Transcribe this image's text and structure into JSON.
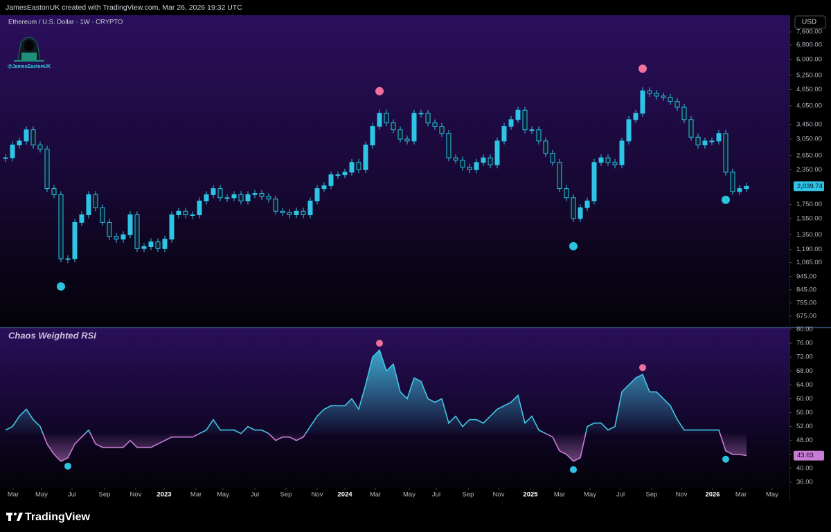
{
  "header": {
    "attribution": "JamesEastonUK created with TradingView.com, Mar 26, 2026 19:32 UTC"
  },
  "watermark": "@JamesEastonUK",
  "footer": {
    "brand": "TradingView"
  },
  "chart_data": [
    {
      "type": "candlestick",
      "title": "Ethereum / U.S. Dollar · 1W · CRYPTO",
      "currency": "USD",
      "log_scale": true,
      "color": "#2ec4e6",
      "values": [
        2600,
        2900,
        3000,
        3300,
        2900,
        2800,
        2000,
        1900,
        1100,
        1100,
        1500,
        1600,
        1900,
        1700,
        1500,
        1330,
        1300,
        1350,
        1600,
        1200,
        1220,
        1270,
        1200,
        1300,
        1600,
        1650,
        1600,
        1600,
        1800,
        1900,
        2000,
        1850,
        1850,
        1900,
        1800,
        1900,
        1920,
        1870,
        1830,
        1650,
        1630,
        1600,
        1650,
        1600,
        1800,
        2000,
        2050,
        2250,
        2250,
        2300,
        2500,
        2350,
        2900,
        3400,
        3800,
        3500,
        3300,
        3050,
        3000,
        3800,
        3800,
        3500,
        3400,
        3200,
        2600,
        2550,
        2400,
        2350,
        2500,
        2600,
        2450,
        3000,
        3400,
        3600,
        3900,
        3300,
        3300,
        3000,
        2700,
        2500,
        2000,
        1850,
        1550,
        1700,
        1800,
        2500,
        2600,
        2500,
        2450,
        3000,
        3600,
        3800,
        4600,
        4500,
        4400,
        4350,
        4200,
        4000,
        3600,
        3100,
        2900,
        3000,
        3000,
        3200,
        2300,
        1950,
        2000,
        2039.74
      ],
      "last_value_label": "2,039.74",
      "signals_high": [
        54,
        92
      ],
      "signals_low": [
        8,
        82,
        104
      ],
      "high_color": "#f0709c",
      "low_color": "#2cc3e0",
      "xlim": [
        -0.8,
        113.2
      ],
      "ylim": [
        614,
        8760
      ],
      "yticks": [
        {
          "value": 7600,
          "label": "7,600.00"
        },
        {
          "value": 6800,
          "label": "6,800.00"
        },
        {
          "value": 6000,
          "label": "6,000.00"
        },
        {
          "value": 5250,
          "label": "5,250.00"
        },
        {
          "value": 4650,
          "label": "4,650.00"
        },
        {
          "value": 4050,
          "label": "4,050.00"
        },
        {
          "value": 3450,
          "label": "3,450.00"
        },
        {
          "value": 3050,
          "label": "3,050.00"
        },
        {
          "value": 2650,
          "label": "2,650.00"
        },
        {
          "value": 2350,
          "label": "2,350.00"
        },
        {
          "value": 1750,
          "label": "1,750.00"
        },
        {
          "value": 1550,
          "label": "1,550.00"
        },
        {
          "value": 1350,
          "label": "1,350.00"
        },
        {
          "value": 1190,
          "label": "1,190.00"
        },
        {
          "value": 1065,
          "label": "1,065.00"
        },
        {
          "value": 945,
          "label": "945.00"
        },
        {
          "value": 845,
          "label": "845.00"
        },
        {
          "value": 755,
          "label": "755.00"
        },
        {
          "value": 675,
          "label": "675.00"
        }
      ]
    },
    {
      "type": "line",
      "title": "Chaos Weighted RSI",
      "baseline": 50,
      "color": "#3fc8e4",
      "below_color": "#c77dd6",
      "values": [
        51,
        52,
        55,
        57,
        54,
        52,
        47,
        44,
        42,
        43,
        47,
        49,
        51,
        47,
        46,
        46,
        46,
        46,
        48,
        46,
        46,
        46,
        47,
        48,
        49,
        49,
        49,
        49,
        50,
        51,
        54,
        51,
        51,
        51,
        50,
        52,
        51,
        51,
        50,
        48,
        49,
        49,
        48,
        49,
        52,
        55,
        57,
        58,
        58,
        58,
        60,
        57,
        64,
        72,
        74,
        68,
        70,
        62,
        60,
        66,
        65,
        60,
        59,
        60,
        53,
        55,
        52,
        54,
        54,
        53,
        55,
        57,
        58,
        59,
        61,
        53,
        55,
        51,
        50,
        49,
        45,
        44,
        42,
        43,
        52,
        53,
        53,
        51,
        52,
        62,
        64,
        66,
        67,
        62,
        62,
        60,
        58,
        54,
        51,
        51,
        51,
        51,
        51,
        51,
        45,
        44,
        44,
        43.63
      ],
      "last_value_label": "43.63",
      "signals_high": [
        54,
        92
      ],
      "signals_low": [
        9,
        82,
        104
      ],
      "high_color": "#f0709c",
      "low_color": "#2cc3e0",
      "xlim": [
        -0.8,
        113.2
      ],
      "ylim": [
        34.4,
        80.4
      ],
      "yticks": [
        {
          "value": 80,
          "label": "80.00"
        },
        {
          "value": 76,
          "label": "76.00"
        },
        {
          "value": 72,
          "label": "72.00"
        },
        {
          "value": 68,
          "label": "68.00"
        },
        {
          "value": 64,
          "label": "64.00"
        },
        {
          "value": 60,
          "label": "60.00"
        },
        {
          "value": 56,
          "label": "56.00"
        },
        {
          "value": 52,
          "label": "52.00"
        },
        {
          "value": 48,
          "label": "48.00"
        },
        {
          "value": 44,
          "label": "44.00"
        },
        {
          "value": 40,
          "label": "40.00"
        },
        {
          "value": 36,
          "label": "36.00"
        }
      ],
      "xticks": [
        {
          "value": 1.1,
          "label": "Mar"
        },
        {
          "value": 5.2,
          "label": "May"
        },
        {
          "value": 9.6,
          "label": "Jul"
        },
        {
          "value": 14.3,
          "label": "Sep"
        },
        {
          "value": 18.8,
          "label": "Nov"
        },
        {
          "value": 22.9,
          "label": "2023"
        },
        {
          "value": 27.5,
          "label": "Mar"
        },
        {
          "value": 31.4,
          "label": "May"
        },
        {
          "value": 36,
          "label": "Jul"
        },
        {
          "value": 40.5,
          "label": "Sep"
        },
        {
          "value": 45,
          "label": "Nov"
        },
        {
          "value": 49,
          "label": "2024"
        },
        {
          "value": 53.4,
          "label": "Mar"
        },
        {
          "value": 58.3,
          "label": "May"
        },
        {
          "value": 62.2,
          "label": "Jul"
        },
        {
          "value": 66.8,
          "label": "Sep"
        },
        {
          "value": 71.2,
          "label": "Nov"
        },
        {
          "value": 75.8,
          "label": "2025"
        },
        {
          "value": 80,
          "label": "Mar"
        },
        {
          "value": 84.4,
          "label": "May"
        },
        {
          "value": 88.8,
          "label": "Jul"
        },
        {
          "value": 93.3,
          "label": "Sep"
        },
        {
          "value": 97.6,
          "label": "Nov"
        },
        {
          "value": 102.1,
          "label": "2026"
        },
        {
          "value": 106.2,
          "label": "Mar"
        },
        {
          "value": 110.7,
          "label": "May"
        }
      ]
    }
  ]
}
